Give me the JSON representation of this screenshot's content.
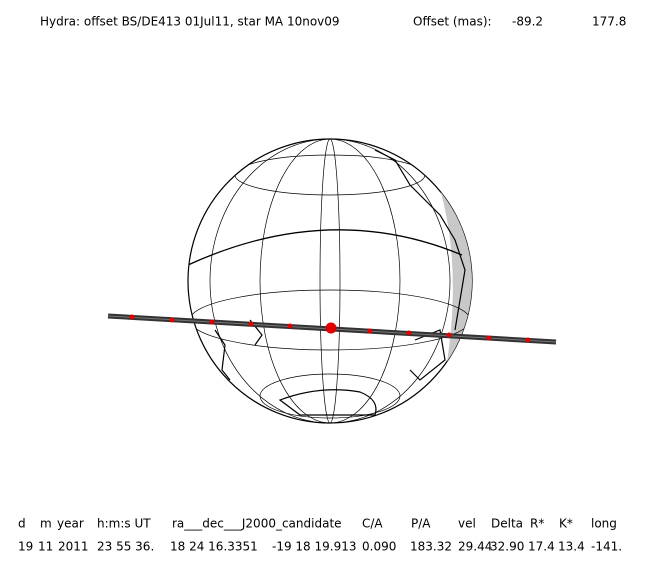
{
  "header": {
    "title": "Hydra: offset BS/DE413 01Jul11, star MA 10nov09",
    "offset_label": "Offset (mas):",
    "offset_values": [
      "-89.2",
      "177.8"
    ]
  },
  "table": {
    "columns": [
      "d",
      "m",
      "year",
      "h:m:s UT",
      "ra___dec___J2000_candidate",
      "C/A",
      "P/A",
      "vel",
      "Delta",
      "R*",
      "K*",
      "long"
    ],
    "row": [
      "19",
      "11",
      "2011",
      "23 55 36.",
      "18 24 16.3351",
      "-19 18 19.913",
      "0.090",
      "183.32",
      "29.44",
      "32.90",
      "17.4",
      "13.4",
      "-141."
    ]
  }
}
